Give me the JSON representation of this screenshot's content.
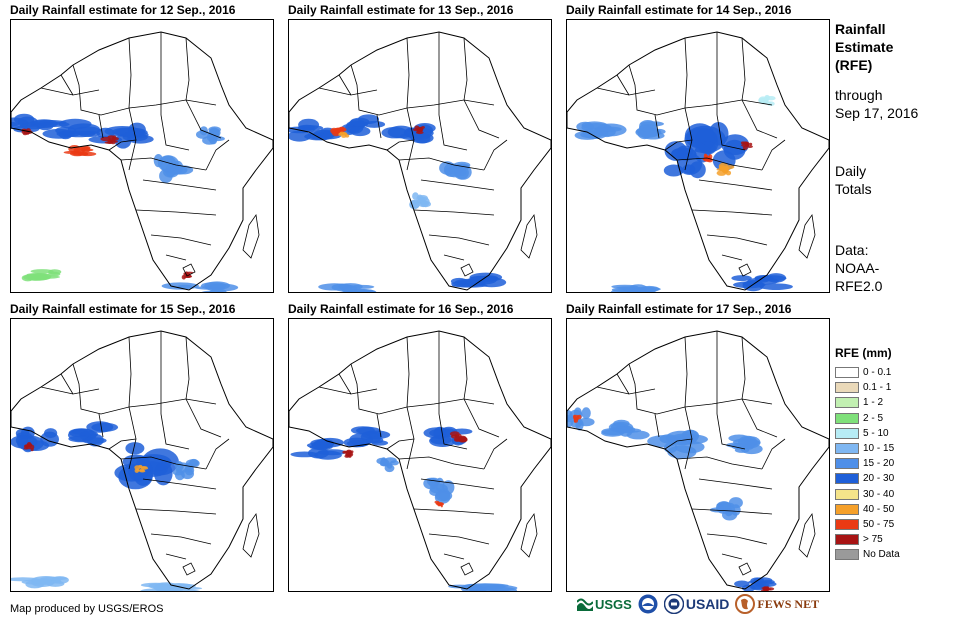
{
  "panels": [
    {
      "title": "Daily Rainfall estimate for 12 Sep., 2016"
    },
    {
      "title": "Daily Rainfall estimate for 13 Sep., 2016"
    },
    {
      "title": "Daily Rainfall estimate for 14 Sep., 2016"
    },
    {
      "title": "Daily Rainfall estimate for 15 Sep., 2016"
    },
    {
      "title": "Daily Rainfall estimate for 16 Sep., 2016"
    },
    {
      "title": "Daily Rainfall estimate for 17 Sep., 2016"
    }
  ],
  "sidebar": {
    "title_line1": "Rainfall",
    "title_line2": "Estimate",
    "title_line3": "(RFE)",
    "through_label": "through",
    "through_date": "Sep 17, 2016",
    "totals_line1": "Daily",
    "totals_line2": "Totals",
    "data_line1": "Data:",
    "data_line2": "NOAA-",
    "data_line3": "RFE2.0"
  },
  "legend": {
    "title": "RFE (mm)",
    "items": [
      {
        "label": "0 - 0.1",
        "color": "#ffffff"
      },
      {
        "label": "0.1 - 1",
        "color": "#ead9b9"
      },
      {
        "label": "1 - 2",
        "color": "#c2f0b2"
      },
      {
        "label": "2 - 5",
        "color": "#7fe07a"
      },
      {
        "label": "5 - 10",
        "color": "#b7ecf5"
      },
      {
        "label": "10 - 15",
        "color": "#7fb7f2"
      },
      {
        "label": "15 - 20",
        "color": "#4f8fe8"
      },
      {
        "label": "20 - 30",
        "color": "#1e5fd8"
      },
      {
        "label": "30 - 40",
        "color": "#f5e48a"
      },
      {
        "label": "40 - 50",
        "color": "#f5a02a"
      },
      {
        "label": "50 - 75",
        "color": "#ea3a14"
      },
      {
        "label": "> 75",
        "color": "#a81414"
      },
      {
        "label": "No Data",
        "color": "#9a9a9a"
      }
    ]
  },
  "footer": {
    "credit": "Map produced by USGS/EROS",
    "logo_usgs": "USGS",
    "logo_usaid": "USAID",
    "logo_fews": "FEWS NET"
  }
}
